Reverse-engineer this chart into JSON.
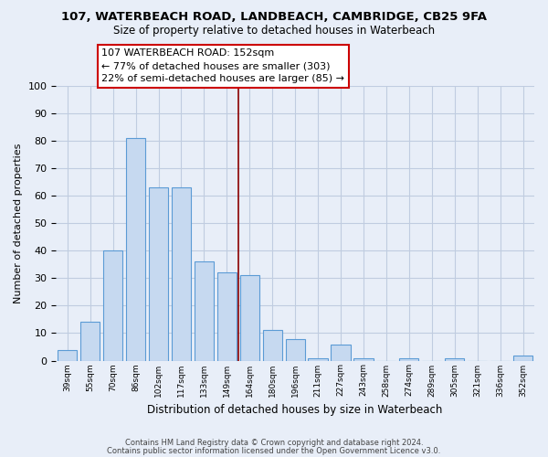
{
  "title": "107, WATERBEACH ROAD, LANDBEACH, CAMBRIDGE, CB25 9FA",
  "subtitle": "Size of property relative to detached houses in Waterbeach",
  "xlabel": "Distribution of detached houses by size in Waterbeach",
  "ylabel": "Number of detached properties",
  "bin_labels": [
    "39sqm",
    "55sqm",
    "70sqm",
    "86sqm",
    "102sqm",
    "117sqm",
    "133sqm",
    "149sqm",
    "164sqm",
    "180sqm",
    "196sqm",
    "211sqm",
    "227sqm",
    "243sqm",
    "258sqm",
    "274sqm",
    "289sqm",
    "305sqm",
    "321sqm",
    "336sqm",
    "352sqm"
  ],
  "bar_heights": [
    4,
    14,
    40,
    81,
    63,
    63,
    36,
    32,
    31,
    11,
    8,
    1,
    6,
    1,
    0,
    1,
    0,
    1,
    0,
    0,
    2
  ],
  "bar_color": "#c6d9f0",
  "bar_edge_color": "#5b9bd5",
  "vline_x": 7.5,
  "vline_color": "#8b0000",
  "annotation_title": "107 WATERBEACH ROAD: 152sqm",
  "annotation_line1": "← 77% of detached houses are smaller (303)",
  "annotation_line2": "22% of semi-detached houses are larger (85) →",
  "annotation_box_color": "#ffffff",
  "annotation_box_edge_color": "#cc0000",
  "ylim": [
    0,
    100
  ],
  "footer1": "Contains HM Land Registry data © Crown copyright and database right 2024.",
  "footer2": "Contains public sector information licensed under the Open Government Licence v3.0.",
  "bg_color": "#e8eef8",
  "grid_color": "#c0cce0"
}
